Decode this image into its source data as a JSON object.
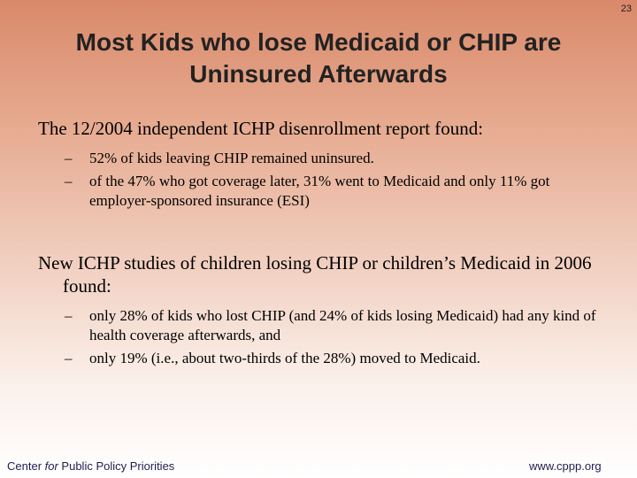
{
  "page_number": "23",
  "title": {
    "line1": "Most Kids who lose Medicaid or CHIP are",
    "line2": "Uninsured Afterwards"
  },
  "section1": {
    "lead": "The 12/2004 independent ICHP disenrollment report found:",
    "bullets": [
      "52% of kids leaving CHIP remained uninsured.",
      "of the 47% who got coverage later, 31% went to Medicaid and only 11% got employer-sponsored insurance (ESI)"
    ]
  },
  "section2": {
    "lead": "New ICHP studies of children losing CHIP or children’s Medicaid in 2006 found:",
    "bullets": [
      "only 28% of kids who lost CHIP (and 24% of kids losing Medicaid) had any kind of health coverage afterwards, and",
      "only 19% (i.e., about two-thirds of the 28%)  moved to Medicaid."
    ]
  },
  "footer": {
    "org_prefix": "Center ",
    "org_italic": "for",
    "org_suffix": " Public Policy Priorities",
    "url": "www.cppp.org"
  },
  "bullet_glyph": "–"
}
